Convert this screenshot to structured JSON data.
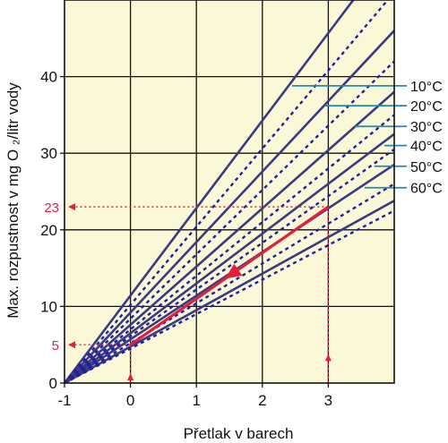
{
  "chart_data": {
    "type": "line",
    "xlabel": "Přetlak v barech",
    "ylabel": "Max. rozpustnost v mg O ₂/litr vody",
    "xlim": [
      -1,
      4
    ],
    "ylim": [
      0,
      50
    ],
    "x_ticks": [
      "-1",
      "0",
      "1",
      "2",
      "3"
    ],
    "y_ticks": [
      "0",
      "10",
      "20",
      "30",
      "40"
    ],
    "x_tick_values": [
      -1,
      0,
      1,
      2,
      3
    ],
    "y_tick_values": [
      0,
      10,
      20,
      30,
      40
    ],
    "grid": true,
    "legend_position": "right",
    "series": [
      {
        "name": "10°C",
        "style": "solid",
        "x": [
          -1,
          4
        ],
        "y": [
          0,
          57.1
        ]
      },
      {
        "name": "20°C",
        "style": "solid",
        "x": [
          -1,
          4
        ],
        "y": [
          0,
          46.0
        ]
      },
      {
        "name": "30°C",
        "style": "solid",
        "x": [
          -1,
          4
        ],
        "y": [
          0,
          38.0
        ]
      },
      {
        "name": "40°C",
        "style": "solid",
        "x": [
          -1,
          4
        ],
        "y": [
          0,
          32.5
        ]
      },
      {
        "name": "50°C",
        "style": "solid",
        "x": [
          -1,
          4
        ],
        "y": [
          0,
          28.5
        ]
      },
      {
        "name": "60°C",
        "style": "solid",
        "x": [
          -1,
          4
        ],
        "y": [
          0,
          23.8
        ]
      },
      {
        "style": "dotted",
        "x": [
          -1,
          4
        ],
        "y": [
          0,
          51.0
        ]
      },
      {
        "style": "dotted",
        "x": [
          -1,
          4
        ],
        "y": [
          0,
          42.0
        ]
      },
      {
        "style": "dotted",
        "x": [
          -1,
          4
        ],
        "y": [
          0,
          35.0
        ]
      },
      {
        "style": "dotted",
        "x": [
          -1,
          4
        ],
        "y": [
          0,
          30.5
        ]
      },
      {
        "style": "dotted",
        "x": [
          -1,
          4
        ],
        "y": [
          0,
          26.0
        ]
      },
      {
        "style": "dotted",
        "x": [
          -1,
          4
        ],
        "y": [
          0,
          22.5
        ]
      }
    ],
    "legend_pointers": [
      {
        "label": "10°C",
        "x": 2.45,
        "y": 38.8
      },
      {
        "label": "20°C",
        "x": 2.95,
        "y": 36.2
      },
      {
        "label": "30°C",
        "x": 3.4,
        "y": 33.5
      },
      {
        "label": "40°C",
        "x": 3.85,
        "y": 31.0
      },
      {
        "label": "50°C",
        "x": 3.7,
        "y": 28.3
      },
      {
        "label": "60°C",
        "x": 3.55,
        "y": 25.5
      }
    ],
    "annotations": [
      {
        "label": "5",
        "x": 0,
        "y": 5
      },
      {
        "label": "23",
        "x": 3,
        "y": 23
      }
    ],
    "example_path": {
      "from": [
        0,
        5
      ],
      "to": [
        3,
        23
      ]
    },
    "colors": {
      "background": "#fbf8d8",
      "line": "#3a3a80",
      "dotted": "#2020a0",
      "grid": "#111111",
      "pointer": "#1e8ab8",
      "accent": "#e02040"
    }
  }
}
